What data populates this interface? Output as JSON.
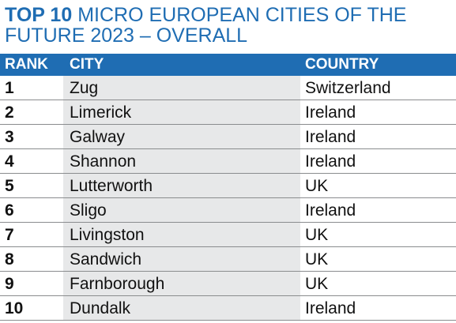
{
  "title": {
    "bold": "TOP 10",
    "light_line1": " MICRO EUROPEAN CITIES OF THE",
    "light_line2": "FUTURE 2023 – OVERALL"
  },
  "colors": {
    "accent": "#1f6db3",
    "city_band": "#e7e8e9"
  },
  "table": {
    "headers": {
      "rank": "RANK",
      "city": "CITY",
      "country": "COUNTRY"
    },
    "rows": [
      {
        "rank": "1",
        "city": "Zug",
        "country": "Switzerland"
      },
      {
        "rank": "2",
        "city": "Limerick",
        "country": "Ireland"
      },
      {
        "rank": "3",
        "city": "Galway",
        "country": "Ireland"
      },
      {
        "rank": "4",
        "city": "Shannon",
        "country": "Ireland"
      },
      {
        "rank": "5",
        "city": "Lutterworth",
        "country": "UK"
      },
      {
        "rank": "6",
        "city": "Sligo",
        "country": "Ireland"
      },
      {
        "rank": "7",
        "city": "Livingston",
        "country": "UK"
      },
      {
        "rank": "8",
        "city": "Sandwich",
        "country": "UK"
      },
      {
        "rank": "9",
        "city": "Farnborough",
        "country": "UK"
      },
      {
        "rank": "10",
        "city": "Dundalk",
        "country": "Ireland"
      }
    ]
  }
}
